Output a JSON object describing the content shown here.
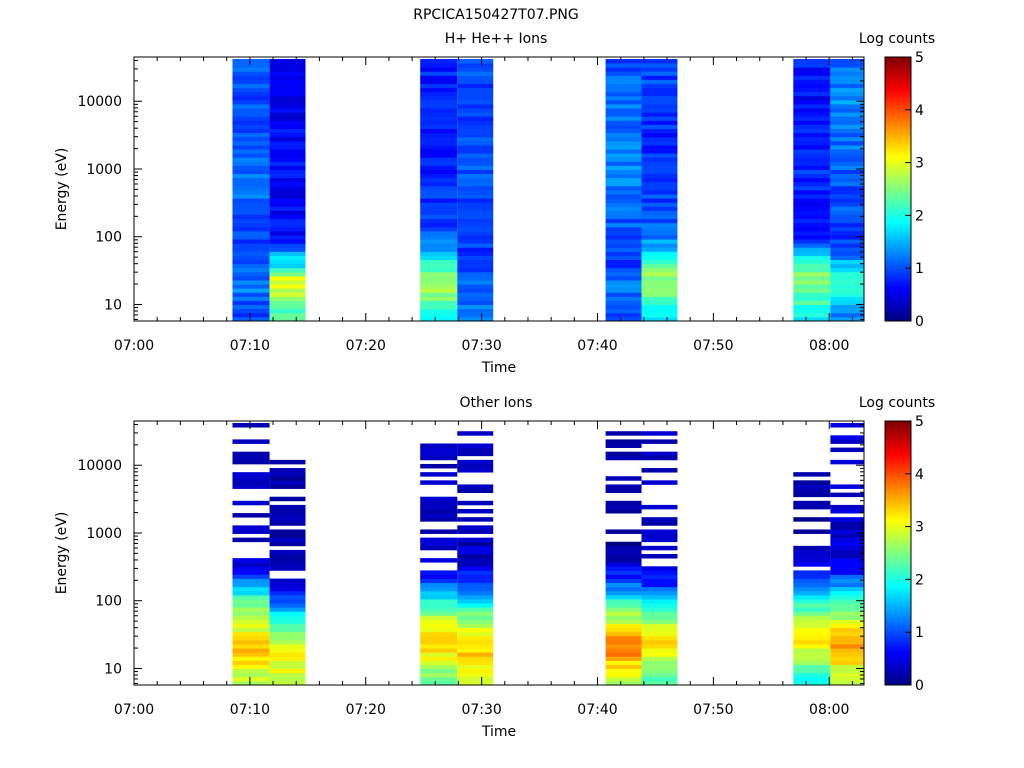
{
  "figure": {
    "title": "RPCICA150427T07.PNG"
  },
  "colorbar": {
    "title": "Log counts",
    "range": [
      0,
      5
    ],
    "ticks": [
      "0",
      "1",
      "2",
      "3",
      "4",
      "5"
    ],
    "colormap": "jet"
  },
  "chart_data": [
    {
      "type": "heatmap",
      "title": "H+ He++ Ions",
      "xlabel": "Time",
      "ylabel": "Energy (eV)",
      "y_scale": "log",
      "x_range": [
        "07:00",
        "08:03"
      ],
      "y_range": [
        5.7,
        45000
      ],
      "x_ticks": [
        "07:00",
        "07:10",
        "07:20",
        "07:30",
        "07:40",
        "07:50",
        "08:00"
      ],
      "y_ticks": [
        "10",
        "100",
        "1000",
        "10000"
      ],
      "y_tick_values": [
        10,
        100,
        1000,
        10000
      ],
      "color_value": "log10 counts",
      "columns": [
        {
          "start": "07:08.5",
          "end": "07:11.7",
          "profile": [
            [
              6,
              1.0
            ],
            [
              10,
              1.0
            ],
            [
              15,
              1.2
            ],
            [
              30,
              1.2
            ],
            [
              60,
              1.0
            ],
            [
              150,
              0.9
            ],
            [
              400,
              1.1
            ],
            [
              1000,
              1.2
            ],
            [
              3000,
              1.1
            ],
            [
              10000,
              1.0
            ],
            [
              40000,
              1.1
            ]
          ]
        },
        {
          "start": "07:11.7",
          "end": "07:14.8",
          "profile": [
            [
              6,
              2.2
            ],
            [
              10,
              2.4
            ],
            [
              15,
              2.8
            ],
            [
              25,
              3.0
            ],
            [
              35,
              1.9
            ],
            [
              50,
              1.6
            ],
            [
              70,
              0.9
            ],
            [
              100,
              0.7
            ],
            [
              400,
              0.6
            ],
            [
              1000,
              0.7
            ],
            [
              3000,
              0.6
            ],
            [
              10000,
              0.5
            ],
            [
              40000,
              0.5
            ]
          ]
        },
        {
          "start": "07:24.7",
          "end": "07:27.9",
          "profile": [
            [
              6,
              2.0
            ],
            [
              10,
              2.3
            ],
            [
              15,
              2.6
            ],
            [
              20,
              2.6
            ],
            [
              30,
              2.4
            ],
            [
              50,
              1.8
            ],
            [
              70,
              1.3
            ],
            [
              150,
              0.9
            ],
            [
              400,
              0.9
            ],
            [
              1000,
              0.8
            ],
            [
              3000,
              0.7
            ],
            [
              10000,
              0.7
            ],
            [
              40000,
              0.8
            ]
          ]
        },
        {
          "start": "07:27.9",
          "end": "07:31.0",
          "profile": [
            [
              6,
              1.2
            ],
            [
              10,
              1.2
            ],
            [
              20,
              1.2
            ],
            [
              30,
              1.1
            ],
            [
              50,
              0.9
            ],
            [
              100,
              0.9
            ],
            [
              300,
              1.0
            ],
            [
              1000,
              1.0
            ],
            [
              3000,
              0.9
            ],
            [
              10000,
              0.9
            ],
            [
              40000,
              1.0
            ]
          ]
        },
        {
          "start": "07:40.7",
          "end": "07:43.8",
          "profile": [
            [
              6,
              1.0
            ],
            [
              10,
              1.1
            ],
            [
              15,
              1.2
            ],
            [
              25,
              1.1
            ],
            [
              40,
              0.9
            ],
            [
              100,
              1.0
            ],
            [
              300,
              1.2
            ],
            [
              1000,
              1.3
            ],
            [
              3000,
              1.2
            ],
            [
              10000,
              1.2
            ],
            [
              40000,
              1.0
            ]
          ]
        },
        {
          "start": "07:43.8",
          "end": "07:46.9",
          "profile": [
            [
              6,
              1.9
            ],
            [
              10,
              2.0
            ],
            [
              15,
              2.4
            ],
            [
              25,
              2.6
            ],
            [
              40,
              2.3
            ],
            [
              60,
              1.7
            ],
            [
              100,
              1.2
            ],
            [
              300,
              1.0
            ],
            [
              1000,
              0.8
            ],
            [
              3000,
              0.8
            ],
            [
              10000,
              0.9
            ],
            [
              40000,
              1.0
            ]
          ]
        },
        {
          "start": "07:56.9",
          "end": "08:00.1",
          "profile": [
            [
              6,
              1.8
            ],
            [
              10,
              2.1
            ],
            [
              15,
              2.4
            ],
            [
              25,
              2.6
            ],
            [
              40,
              2.3
            ],
            [
              60,
              1.6
            ],
            [
              100,
              0.8
            ],
            [
              300,
              0.7
            ],
            [
              1000,
              0.8
            ],
            [
              3000,
              0.7
            ],
            [
              10000,
              0.6
            ],
            [
              40000,
              0.8
            ]
          ]
        },
        {
          "start": "08:00.1",
          "end": "08:03.0",
          "profile": [
            [
              6,
              1.2
            ],
            [
              10,
              1.5
            ],
            [
              15,
              1.9
            ],
            [
              25,
              2.0
            ],
            [
              40,
              1.6
            ],
            [
              60,
              1.1
            ],
            [
              100,
              0.9
            ],
            [
              300,
              1.0
            ],
            [
              1000,
              1.1
            ],
            [
              3000,
              1.2
            ],
            [
              10000,
              1.3
            ],
            [
              40000,
              1.2
            ]
          ]
        }
      ]
    },
    {
      "type": "heatmap",
      "title": "Other Ions",
      "xlabel": "Time",
      "ylabel": "Energy (eV)",
      "y_scale": "log",
      "x_range": [
        "07:00",
        "08:03"
      ],
      "y_range": [
        5.7,
        45000
      ],
      "x_ticks": [
        "07:00",
        "07:10",
        "07:20",
        "07:30",
        "07:40",
        "07:50",
        "08:00"
      ],
      "y_ticks": [
        "10",
        "100",
        "1000",
        "10000"
      ],
      "y_tick_values": [
        10,
        100,
        1000,
        10000
      ],
      "color_value": "log10 counts",
      "columns": [
        {
          "start": "07:08.5",
          "end": "07:11.7",
          "sparse_above": 400,
          "profile": [
            [
              6,
              2.7
            ],
            [
              10,
              3.0
            ],
            [
              15,
              3.4
            ],
            [
              25,
              3.4
            ],
            [
              35,
              3.0
            ],
            [
              60,
              2.6
            ],
            [
              100,
              2.3
            ],
            [
              150,
              1.6
            ],
            [
              250,
              0.8
            ],
            [
              400,
              0.3
            ],
            [
              1000,
              0.2
            ],
            [
              5000,
              0.2
            ],
            [
              40000,
              0.2
            ]
          ]
        },
        {
          "start": "07:11.7",
          "end": "07:14.8",
          "sparse_above": 200,
          "profile": [
            [
              6,
              2.8
            ],
            [
              10,
              3.0
            ],
            [
              15,
              3.1
            ],
            [
              25,
              2.8
            ],
            [
              35,
              2.3
            ],
            [
              60,
              1.9
            ],
            [
              100,
              1.1
            ],
            [
              150,
              0.7
            ],
            [
              250,
              0.4
            ],
            [
              400,
              0.2
            ],
            [
              1000,
              0.1
            ],
            [
              5000,
              0.1
            ],
            [
              12000,
              0.1
            ]
          ]
        },
        {
          "start": "07:24.7",
          "end": "07:27.9",
          "sparse_above": 250,
          "profile": [
            [
              6,
              2.2
            ],
            [
              10,
              2.7
            ],
            [
              15,
              3.1
            ],
            [
              25,
              3.3
            ],
            [
              35,
              3.2
            ],
            [
              60,
              2.6
            ],
            [
              100,
              2.0
            ],
            [
              150,
              1.3
            ],
            [
              250,
              0.7
            ],
            [
              400,
              0.3
            ],
            [
              1000,
              0.2
            ],
            [
              5000,
              0.2
            ],
            [
              20000,
              0.2
            ]
          ]
        },
        {
          "start": "07:27.9",
          "end": "07:31.0",
          "sparse_above": 900,
          "profile": [
            [
              6,
              2.9
            ],
            [
              10,
              3.1
            ],
            [
              15,
              3.3
            ],
            [
              25,
              3.4
            ],
            [
              35,
              3.1
            ],
            [
              60,
              2.5
            ],
            [
              100,
              1.8
            ],
            [
              150,
              1.1
            ],
            [
              250,
              0.7
            ],
            [
              400,
              0.4
            ],
            [
              1000,
              0.2
            ],
            [
              5000,
              0.2
            ],
            [
              40000,
              0.3
            ]
          ]
        },
        {
          "start": "07:40.7",
          "end": "07:43.8",
          "sparse_above": 700,
          "profile": [
            [
              6,
              2.7
            ],
            [
              10,
              3.1
            ],
            [
              15,
              3.6
            ],
            [
              25,
              3.7
            ],
            [
              35,
              3.3
            ],
            [
              60,
              2.7
            ],
            [
              100,
              2.1
            ],
            [
              150,
              1.3
            ],
            [
              250,
              0.7
            ],
            [
              400,
              0.3
            ],
            [
              1000,
              0.1
            ],
            [
              5000,
              0.1
            ],
            [
              30000,
              0.1
            ]
          ]
        },
        {
          "start": "07:43.8",
          "end": "07:46.9",
          "sparse_above": 200,
          "profile": [
            [
              6,
              2.2
            ],
            [
              10,
              2.5
            ],
            [
              15,
              3.0
            ],
            [
              25,
              3.3
            ],
            [
              35,
              3.0
            ],
            [
              60,
              2.5
            ],
            [
              100,
              1.8
            ],
            [
              150,
              1.0
            ],
            [
              250,
              0.5
            ],
            [
              400,
              0.3
            ],
            [
              1000,
              0.2
            ],
            [
              5000,
              0.2
            ],
            [
              30000,
              0.2
            ]
          ]
        },
        {
          "start": "07:56.9",
          "end": "08:00.1",
          "sparse_above": 300,
          "profile": [
            [
              6,
              1.8
            ],
            [
              10,
              2.3
            ],
            [
              15,
              2.7
            ],
            [
              25,
              3.2
            ],
            [
              35,
              3.1
            ],
            [
              60,
              2.6
            ],
            [
              100,
              2.0
            ],
            [
              150,
              1.3
            ],
            [
              250,
              0.7
            ],
            [
              400,
              0.3
            ],
            [
              1000,
              0.1
            ],
            [
              5000,
              0.1
            ],
            [
              9000,
              0.1
            ]
          ]
        },
        {
          "start": "08:00.1",
          "end": "08:03.0",
          "sparse_above": 1500,
          "profile": [
            [
              6,
              2.7
            ],
            [
              10,
              3.0
            ],
            [
              15,
              3.4
            ],
            [
              25,
              3.7
            ],
            [
              35,
              3.3
            ],
            [
              60,
              2.7
            ],
            [
              100,
              2.4
            ],
            [
              150,
              1.6
            ],
            [
              250,
              0.8
            ],
            [
              400,
              0.5
            ],
            [
              1000,
              0.3
            ],
            [
              5000,
              0.3
            ],
            [
              40000,
              0.3
            ]
          ]
        }
      ]
    }
  ]
}
